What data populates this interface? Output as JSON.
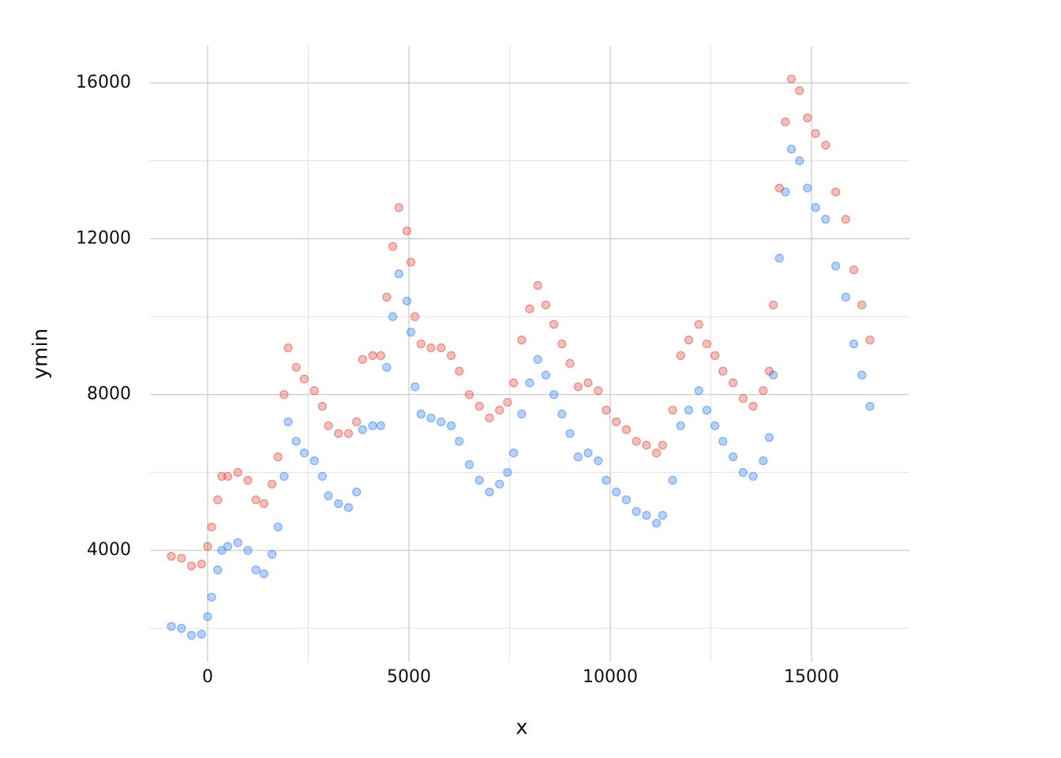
{
  "chart_data": {
    "type": "scatter",
    "x_label": "x",
    "y_label": "ymin",
    "xlim": [
      -1431,
      17431
    ],
    "ylim": [
      1144,
      16952
    ],
    "xticks": [
      0,
      5000,
      10000,
      15000
    ],
    "yticks": [
      4000,
      8000,
      12000,
      16000
    ],
    "xminorticks": [
      2500,
      7500,
      12500
    ],
    "yminorticks": [
      2000,
      6000,
      10000,
      14000
    ],
    "grid": true,
    "x": [
      -900,
      -650,
      -400,
      -150,
      0,
      100,
      250,
      350,
      500,
      750,
      1000,
      1200,
      1400,
      1600,
      1750,
      1900,
      2000,
      2200,
      2400,
      2650,
      2850,
      3000,
      3250,
      3500,
      3700,
      3850,
      4100,
      4300,
      4450,
      4600,
      4750,
      4950,
      5050,
      5150,
      5300,
      5550,
      5800,
      6050,
      6250,
      6500,
      6750,
      7000,
      7250,
      7450,
      7600,
      7800,
      8000,
      8200,
      8400,
      8600,
      8800,
      9000,
      9200,
      9450,
      9700,
      9900,
      10150,
      10400,
      10650,
      10900,
      11150,
      11300,
      11550,
      11750,
      11950,
      12200,
      12400,
      12600,
      12800,
      13050,
      13300,
      13550,
      13800,
      13950,
      14050,
      14200,
      14350,
      14500,
      14700,
      14900,
      15100,
      15350,
      15600,
      15850,
      16050,
      16250,
      16450
    ],
    "series": [
      {
        "color": "#2f7cf6",
        "values": [
          2050,
          2000,
          1820,
          1850,
          2300,
          2800,
          3500,
          4000,
          4100,
          4200,
          4000,
          3500,
          3400,
          3900,
          4600,
          5900,
          7300,
          6800,
          6500,
          6300,
          5900,
          5400,
          5200,
          5100,
          5500,
          7100,
          7200,
          7200,
          8700,
          10000,
          11100,
          10400,
          9600,
          8200,
          7500,
          7400,
          7300,
          7200,
          6800,
          6200,
          5800,
          5500,
          5700,
          6000,
          6500,
          7500,
          8300,
          8900,
          8500,
          8000,
          7500,
          7000,
          6400,
          6500,
          6300,
          5800,
          5500,
          5300,
          5000,
          4900,
          4700,
          4900,
          5800,
          7200,
          7600,
          8100,
          7600,
          7200,
          6800,
          6400,
          6000,
          5900,
          6300,
          6900,
          8500,
          11500,
          13200,
          14300,
          14000,
          13300,
          12800,
          12500,
          11300,
          10500,
          9300,
          8500,
          7700
        ]
      },
      {
        "color": "#e0443a",
        "values": [
          3850,
          3800,
          3600,
          3650,
          4100,
          4600,
          5300,
          5900,
          5900,
          6000,
          5800,
          5300,
          5200,
          5700,
          6400,
          8000,
          9200,
          8700,
          8400,
          8100,
          7700,
          7200,
          7000,
          7000,
          7300,
          8900,
          9000,
          9000,
          10500,
          11800,
          12800,
          12200,
          11400,
          10000,
          9300,
          9200,
          9200,
          9000,
          8600,
          8000,
          7700,
          7400,
          7600,
          7800,
          8300,
          9400,
          10200,
          10800,
          10300,
          9800,
          9300,
          8800,
          8200,
          8300,
          8100,
          7600,
          7300,
          7100,
          6800,
          6700,
          6500,
          6700,
          7600,
          9000,
          9400,
          9800,
          9300,
          9000,
          8600,
          8300,
          7900,
          7700,
          8100,
          8600,
          10300,
          13300,
          15000,
          16100,
          15800,
          15100,
          14700,
          14400,
          13200,
          12500,
          11200,
          10300,
          9400
        ]
      }
    ]
  }
}
